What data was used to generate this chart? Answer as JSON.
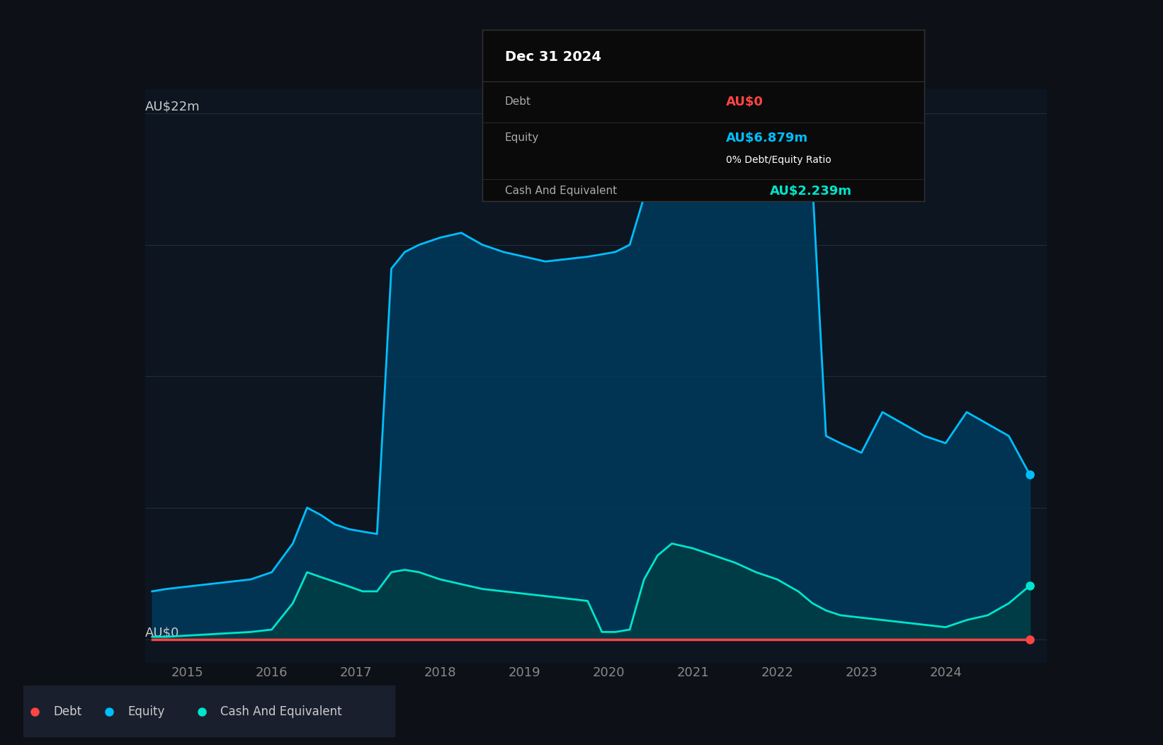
{
  "background_color": "#0d1117",
  "plot_bg_color": "#0d1521",
  "ylabel_top": "AU$22m",
  "ylabel_bottom": "AU$0",
  "x_ticks": [
    2015,
    2016,
    2017,
    2018,
    2019,
    2020,
    2021,
    2022,
    2023,
    2024
  ],
  "xlim": [
    2014.5,
    2025.2
  ],
  "ylim": [
    -1,
    23
  ],
  "grid_color": "#1e2d3d",
  "tooltip": {
    "date": "Dec 31 2024",
    "debt_label": "Debt",
    "debt_value": "AU$0",
    "debt_color": "#ff4444",
    "equity_label": "Equity",
    "equity_value": "AU$6.879m",
    "equity_color": "#00bfff",
    "ratio_text": "0% Debt/Equity Ratio",
    "ratio_color": "#ffffff",
    "cash_label": "Cash And Equivalent",
    "cash_value": "AU$2.239m",
    "cash_color": "#00e5cc",
    "bg_color": "#0a0a0a",
    "border_color": "#333333",
    "label_color": "#aaaaaa",
    "title_color": "#ffffff"
  },
  "legend": {
    "debt_color": "#ff4444",
    "equity_color": "#00bfff",
    "cash_color": "#00e5cc",
    "bg_color": "#1a1f2e",
    "text_color": "#cccccc"
  },
  "equity": {
    "line_color": "#00bfff",
    "fill_color": "#003a5c",
    "fill_alpha": 0.85,
    "x": [
      2014.58,
      2014.75,
      2015.0,
      2015.25,
      2015.5,
      2015.75,
      2016.0,
      2016.25,
      2016.42,
      2016.58,
      2016.75,
      2016.92,
      2017.08,
      2017.25,
      2017.42,
      2017.58,
      2017.75,
      2018.0,
      2018.25,
      2018.5,
      2018.75,
      2019.0,
      2019.25,
      2019.5,
      2019.75,
      2019.92,
      2020.08,
      2020.25,
      2020.42,
      2020.58,
      2020.75,
      2021.0,
      2021.25,
      2021.5,
      2021.75,
      2022.0,
      2022.25,
      2022.42,
      2022.58,
      2022.75,
      2023.0,
      2023.25,
      2023.5,
      2023.75,
      2024.0,
      2024.25,
      2024.5,
      2024.75,
      2025.0
    ],
    "y": [
      2.0,
      2.1,
      2.2,
      2.3,
      2.4,
      2.5,
      2.8,
      4.0,
      5.5,
      5.2,
      4.8,
      4.6,
      4.5,
      4.4,
      15.5,
      16.2,
      16.5,
      16.8,
      17.0,
      16.5,
      16.2,
      16.0,
      15.8,
      15.9,
      16.0,
      16.1,
      16.2,
      16.5,
      18.5,
      19.5,
      20.2,
      20.5,
      20.3,
      20.1,
      19.8,
      19.5,
      19.2,
      19.0,
      8.5,
      8.2,
      7.8,
      9.5,
      9.0,
      8.5,
      8.2,
      9.5,
      9.0,
      8.5,
      6.879
    ]
  },
  "cash": {
    "line_color": "#00e5cc",
    "fill_color": "#004040",
    "fill_alpha": 0.7,
    "x": [
      2014.58,
      2014.75,
      2015.0,
      2015.25,
      2015.5,
      2015.75,
      2016.0,
      2016.25,
      2016.42,
      2016.58,
      2016.75,
      2016.92,
      2017.08,
      2017.25,
      2017.42,
      2017.58,
      2017.75,
      2018.0,
      2018.25,
      2018.5,
      2018.75,
      2019.0,
      2019.25,
      2019.5,
      2019.75,
      2019.92,
      2020.08,
      2020.25,
      2020.42,
      2020.58,
      2020.75,
      2021.0,
      2021.25,
      2021.5,
      2021.75,
      2022.0,
      2022.25,
      2022.42,
      2022.58,
      2022.75,
      2023.0,
      2023.25,
      2023.5,
      2023.75,
      2024.0,
      2024.25,
      2024.5,
      2024.75,
      2025.0
    ],
    "y": [
      0.1,
      0.1,
      0.15,
      0.2,
      0.25,
      0.3,
      0.4,
      1.5,
      2.8,
      2.6,
      2.4,
      2.2,
      2.0,
      2.0,
      2.8,
      2.9,
      2.8,
      2.5,
      2.3,
      2.1,
      2.0,
      1.9,
      1.8,
      1.7,
      1.6,
      0.3,
      0.3,
      0.4,
      2.5,
      3.5,
      4.0,
      3.8,
      3.5,
      3.2,
      2.8,
      2.5,
      2.0,
      1.5,
      1.2,
      1.0,
      0.9,
      0.8,
      0.7,
      0.6,
      0.5,
      0.8,
      1.0,
      1.5,
      2.239
    ]
  },
  "debt": {
    "line_color": "#ff4444",
    "x": [
      2014.58,
      2025.0
    ],
    "y": [
      0.0,
      0.0
    ]
  }
}
